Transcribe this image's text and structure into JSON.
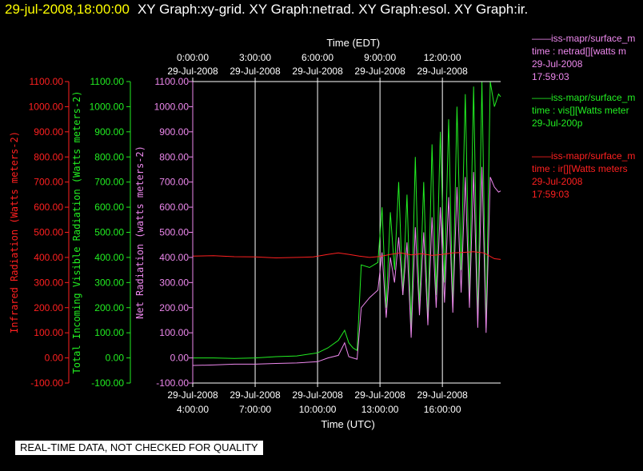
{
  "header": {
    "datetime": "29-jul-2008,18:00:00",
    "graphs": "XY Graph:xy-grid.  XY Graph:netrad.  XY Graph:esol.  XY Graph:ir."
  },
  "colors": {
    "ir": "#ff2020",
    "vis": "#22ee22",
    "net": "#ee88ee",
    "axis": "#ffffff",
    "bg": "#000000"
  },
  "legend": [
    {
      "line1": "——iss-mapr/surface_m",
      "line2": "time : netrad[][watts m",
      "line3": "29-Jul-2008",
      "line4": "17:59:03",
      "color": "#ee88ee"
    },
    {
      "line1": "——iss-mapr/surface_m",
      "line2": "time : vis[][Watts meter",
      "line3": "29-Jul-200p",
      "line4": "",
      "color": "#22ee22"
    },
    {
      "line1": "——iss-mapr/surface_m",
      "line2": "time : ir[][Watts meters",
      "line3": "29-Jul-2008",
      "line4": "17:59:03",
      "color": "#ff2020"
    }
  ],
  "footer": "REAL-TIME DATA, NOT CHECKED FOR QUALITY",
  "chart_data": {
    "type": "line",
    "xlabel_top": "Time (EDT)",
    "xlabel_bottom": "Time (UTC)",
    "x_range_utc_hours": [
      4,
      18.8
    ],
    "top_ticks": [
      {
        "x": 4,
        "time": "0:00:00",
        "date": "29-Jul-2008"
      },
      {
        "x": 7,
        "time": "3:00:00",
        "date": "29-Jul-2008"
      },
      {
        "x": 10,
        "time": "6:00:00",
        "date": "29-Jul-2008"
      },
      {
        "x": 13,
        "time": "9:00:00",
        "date": "29-Jul-2008"
      },
      {
        "x": 16,
        "time": "12:00:00",
        "date": "29-Jul-2008"
      }
    ],
    "bottom_ticks": [
      {
        "x": 4,
        "date": "29-Jul-2008",
        "time": "4:00:00"
      },
      {
        "x": 7,
        "date": "29-Jul-2008",
        "time": "7:00:00"
      },
      {
        "x": 10,
        "date": "29-Jul-2008",
        "time": "10:00:00"
      },
      {
        "x": 13,
        "date": "29-Jul-2008",
        "time": "13:00:00"
      },
      {
        "x": 16,
        "date": "29-Jul-2008",
        "time": "16:00:00"
      }
    ],
    "y_ticks": [
      "-100.00",
      "0.00",
      "100.00",
      "200.00",
      "300.00",
      "400.00",
      "500.00",
      "600.00",
      "700.00",
      "800.00",
      "900.00",
      "1000.00",
      "1100.00"
    ],
    "axes": [
      {
        "id": "ir",
        "label": "Infrared Radiation (Watts meters-2)",
        "ylim": [
          -100,
          1100
        ],
        "color": "#ff2020"
      },
      {
        "id": "vis",
        "label": "Total Incoming Visible Radiation (Watts meters-2)",
        "ylim": [
          -100,
          1100
        ],
        "color": "#22ee22"
      },
      {
        "id": "net",
        "label": "Net Radiation (watts meters-2)",
        "ylim": [
          -100,
          1100
        ],
        "color": "#ee88ee"
      }
    ],
    "series": [
      {
        "name": "ir",
        "color": "#ff2020",
        "x": [
          4,
          5,
          6,
          7,
          8,
          9,
          9.8,
          10.5,
          11,
          11.5,
          12,
          12.5,
          13,
          13.5,
          14,
          14.5,
          15,
          15.5,
          16,
          16.5,
          17,
          17.5,
          18,
          18.5,
          18.8
        ],
        "y": [
          405,
          407,
          403,
          402,
          398,
          400,
          402,
          412,
          418,
          412,
          405,
          400,
          404,
          412,
          418,
          410,
          415,
          408,
          412,
          418,
          420,
          423,
          418,
          395,
          392
        ]
      },
      {
        "name": "vis",
        "color": "#22ee22",
        "x": [
          4,
          5,
          6,
          7,
          8,
          9,
          10,
          10.5,
          11,
          11.3,
          11.5,
          11.7,
          11.9,
          12.1,
          12.5,
          12.9,
          13.1,
          13.3,
          13.5,
          13.7,
          13.9,
          14.1,
          14.3,
          14.5,
          14.7,
          14.9,
          15.1,
          15.3,
          15.5,
          15.7,
          15.9,
          16.1,
          16.3,
          16.5,
          16.7,
          16.9,
          17.1,
          17.3,
          17.5,
          17.7,
          17.9,
          18.1,
          18.3,
          18.5,
          18.7,
          18.8
        ],
        "y": [
          0,
          0,
          -2,
          0,
          5,
          8,
          20,
          40,
          70,
          110,
          60,
          40,
          30,
          370,
          360,
          380,
          600,
          200,
          580,
          350,
          700,
          250,
          650,
          120,
          800,
          200,
          700,
          150,
          850,
          250,
          900,
          300,
          950,
          200,
          1000,
          350,
          1050,
          250,
          1080,
          150,
          1100,
          120,
          1100,
          1000,
          1050,
          1040
        ]
      },
      {
        "name": "net",
        "color": "#ee88ee",
        "x": [
          4,
          5,
          6,
          7,
          8,
          9,
          10,
          10.5,
          11,
          11.3,
          11.5,
          11.7,
          11.9,
          12.1,
          12.5,
          12.9,
          13.1,
          13.3,
          13.5,
          13.7,
          13.9,
          14.1,
          14.3,
          14.5,
          14.7,
          14.9,
          15.1,
          15.3,
          15.5,
          15.7,
          15.9,
          16.1,
          16.3,
          16.5,
          16.7,
          16.9,
          17.1,
          17.3,
          17.5,
          17.7,
          17.9,
          18.1,
          18.3,
          18.5,
          18.7,
          18.8
        ],
        "y": [
          -30,
          -28,
          -25,
          -25,
          -22,
          -20,
          -15,
          0,
          10,
          60,
          5,
          0,
          -5,
          200,
          240,
          270,
          420,
          160,
          400,
          300,
          480,
          250,
          460,
          80,
          520,
          170,
          500,
          130,
          560,
          200,
          600,
          220,
          640,
          180,
          680,
          260,
          720,
          200,
          740,
          120,
          760,
          100,
          720,
          680,
          660,
          665
        ]
      }
    ]
  }
}
